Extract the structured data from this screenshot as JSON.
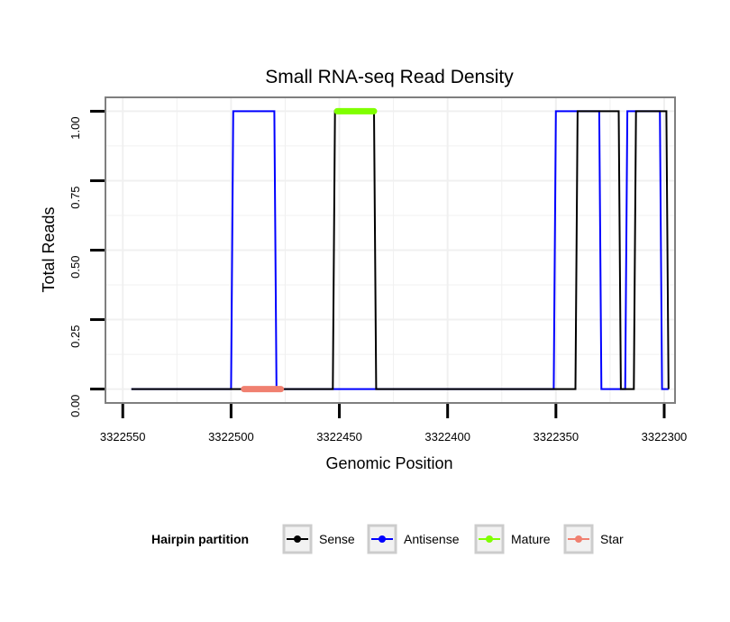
{
  "chart_data": {
    "type": "line",
    "title": "Small RNA-seq Read Density",
    "xlabel": "Genomic Position",
    "ylabel": "Total Reads",
    "x_reversed": true,
    "xlim": [
      3322558,
      3322295
    ],
    "ylim": [
      -0.05,
      1.05
    ],
    "x_ticks": [
      3322550,
      3322500,
      3322450,
      3322400,
      3322350,
      3322300
    ],
    "x_tick_labels": [
      "3322550",
      "3322500",
      "3322450",
      "3322400",
      "3322350",
      "3322300"
    ],
    "y_ticks": [
      0,
      0.25,
      0.5,
      0.75,
      1
    ],
    "y_tick_labels": [
      "0.00",
      "0.25",
      "0.50",
      "0.75",
      "1.00"
    ],
    "grid": true,
    "legend_title": "Hairpin partition",
    "legend_position": "bottom",
    "series": [
      {
        "name": "Sense",
        "color": "#000000",
        "kind": "step",
        "x": [
          3322546,
          3322453,
          3322452,
          3322434,
          3322433,
          3322341,
          3322340,
          3322321,
          3322320,
          3322314,
          3322313,
          3322299,
          3322298
        ],
        "y": [
          0,
          0,
          1,
          1,
          0,
          0,
          1,
          1,
          0,
          0,
          1,
          1,
          0
        ]
      },
      {
        "name": "Antisense",
        "color": "#0000ff",
        "kind": "step",
        "x": [
          3322546,
          3322500,
          3322499,
          3322480,
          3322479,
          3322351,
          3322350,
          3322330,
          3322329,
          3322318,
          3322317,
          3322302,
          3322301,
          3322298
        ],
        "y": [
          0,
          0,
          1,
          1,
          0,
          0,
          1,
          1,
          0,
          0,
          1,
          1,
          0,
          0
        ]
      },
      {
        "name": "Mature",
        "color": "#80ff00",
        "kind": "segment",
        "x": [
          3322451,
          3322434
        ],
        "y": [
          1,
          1
        ]
      },
      {
        "name": "Star",
        "color": "#f08070",
        "kind": "segment",
        "x": [
          3322494,
          3322477
        ],
        "y": [
          0,
          0
        ]
      }
    ]
  }
}
